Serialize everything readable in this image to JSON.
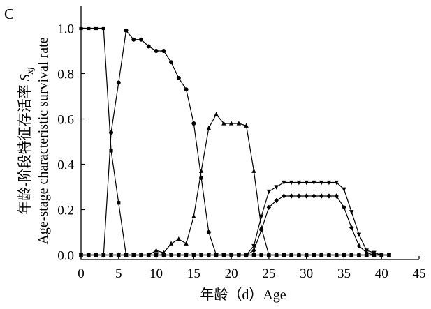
{
  "chart_data": {
    "type": "line",
    "panel_label": "C",
    "xlabel": "年龄（d）Age",
    "ylabel": "年龄-阶段特征存活率 Sxj",
    "ylabel_en": "Age-stage characteristic survival rate",
    "ylabel_symbol_main": "S",
    "ylabel_symbol_sub": "xj",
    "xlim": [
      0,
      45
    ],
    "ylim": [
      -0.02,
      1.1
    ],
    "x_ticks": [
      0,
      5,
      10,
      15,
      20,
      25,
      30,
      35,
      40,
      45
    ],
    "y_ticks": [
      0.0,
      0.2,
      0.4,
      0.6,
      0.8,
      1.0
    ],
    "x_tick_labels": [
      "0",
      "5",
      "10",
      "15",
      "20",
      "25",
      "30",
      "35",
      "40",
      "45"
    ],
    "y_tick_labels": [
      "0.0",
      "0.2",
      "0.4",
      "0.6",
      "0.8",
      "1.0"
    ],
    "grid": false,
    "legend": "none",
    "series": [
      {
        "marker": "square",
        "x": [
          0,
          1,
          2,
          3,
          4,
          5,
          6,
          7,
          8,
          9,
          10,
          11,
          12,
          13,
          14,
          15,
          16,
          17,
          18,
          19,
          20,
          21,
          22,
          23,
          24,
          25,
          26,
          27,
          28,
          29,
          30,
          31,
          32,
          33,
          34,
          35,
          36,
          37,
          38,
          39,
          40,
          41
        ],
        "y": [
          1.0,
          1.0,
          1.0,
          1.0,
          0.46,
          0.23,
          0.0,
          0.0,
          0.0,
          0.0,
          0.0,
          0.0,
          0.0,
          0.0,
          0.0,
          0.0,
          0.0,
          0.0,
          0.0,
          0.0,
          0.0,
          0.0,
          0.0,
          0.0,
          0.0,
          0.0,
          0.0,
          0.0,
          0.0,
          0.0,
          0.0,
          0.0,
          0.0,
          0.0,
          0.0,
          0.0,
          0.0,
          0.0,
          0.0,
          0.0,
          0.0,
          0.0
        ]
      },
      {
        "marker": "circle",
        "x": [
          0,
          1,
          2,
          3,
          4,
          5,
          6,
          7,
          8,
          9,
          10,
          11,
          12,
          13,
          14,
          15,
          16,
          17,
          18,
          19,
          20,
          21,
          22,
          23,
          24,
          25,
          26,
          27,
          28,
          29,
          30,
          31,
          32,
          33,
          34,
          35,
          36,
          37,
          38,
          39,
          40,
          41
        ],
        "y": [
          0.0,
          0.0,
          0.0,
          0.0,
          0.54,
          0.76,
          0.99,
          0.95,
          0.95,
          0.92,
          0.9,
          0.9,
          0.85,
          0.78,
          0.73,
          0.58,
          0.34,
          0.1,
          0.0,
          0.0,
          0.0,
          0.0,
          0.0,
          0.0,
          0.0,
          0.0,
          0.0,
          0.0,
          0.0,
          0.0,
          0.0,
          0.0,
          0.0,
          0.0,
          0.0,
          0.0,
          0.0,
          0.0,
          0.0,
          0.0,
          0.0,
          0.0
        ]
      },
      {
        "marker": "triangle-up",
        "x": [
          0,
          1,
          2,
          3,
          4,
          5,
          6,
          7,
          8,
          9,
          10,
          11,
          12,
          13,
          14,
          15,
          16,
          17,
          18,
          19,
          20,
          21,
          22,
          23,
          24,
          25,
          26,
          27,
          28,
          29,
          30,
          31,
          32,
          33,
          34,
          35,
          36,
          37,
          38,
          39,
          40,
          41
        ],
        "y": [
          0.0,
          0.0,
          0.0,
          0.0,
          0.0,
          0.0,
          0.0,
          0.0,
          0.0,
          0.0,
          0.02,
          0.01,
          0.05,
          0.07,
          0.05,
          0.17,
          0.37,
          0.56,
          0.62,
          0.58,
          0.58,
          0.58,
          0.57,
          0.37,
          0.12,
          0.0,
          0.0,
          0.0,
          0.0,
          0.0,
          0.0,
          0.0,
          0.0,
          0.0,
          0.0,
          0.0,
          0.0,
          0.0,
          0.0,
          0.0,
          0.0,
          0.0
        ]
      },
      {
        "marker": "triangle-down",
        "x": [
          0,
          1,
          2,
          3,
          4,
          5,
          6,
          7,
          8,
          9,
          10,
          11,
          12,
          13,
          14,
          15,
          16,
          17,
          18,
          19,
          20,
          21,
          22,
          23,
          24,
          25,
          26,
          27,
          28,
          29,
          30,
          31,
          32,
          33,
          34,
          35,
          36,
          37,
          38,
          39,
          40,
          41
        ],
        "y": [
          0.0,
          0.0,
          0.0,
          0.0,
          0.0,
          0.0,
          0.0,
          0.0,
          0.0,
          0.0,
          0.0,
          0.0,
          0.0,
          0.0,
          0.0,
          0.0,
          0.0,
          0.0,
          0.0,
          0.0,
          0.0,
          0.0,
          0.0,
          0.04,
          0.17,
          0.28,
          0.3,
          0.32,
          0.32,
          0.32,
          0.32,
          0.32,
          0.32,
          0.32,
          0.32,
          0.29,
          0.19,
          0.09,
          0.02,
          0.01,
          0.0,
          0.0
        ]
      },
      {
        "marker": "diamond",
        "x": [
          0,
          1,
          2,
          3,
          4,
          5,
          6,
          7,
          8,
          9,
          10,
          11,
          12,
          13,
          14,
          15,
          16,
          17,
          18,
          19,
          20,
          21,
          22,
          23,
          24,
          25,
          26,
          27,
          28,
          29,
          30,
          31,
          32,
          33,
          34,
          35,
          36,
          37,
          38,
          39,
          40,
          41
        ],
        "y": [
          0.0,
          0.0,
          0.0,
          0.0,
          0.0,
          0.0,
          0.0,
          0.0,
          0.0,
          0.0,
          0.0,
          0.0,
          0.0,
          0.0,
          0.0,
          0.0,
          0.0,
          0.0,
          0.0,
          0.0,
          0.0,
          0.0,
          0.0,
          0.02,
          0.11,
          0.21,
          0.24,
          0.26,
          0.26,
          0.26,
          0.26,
          0.26,
          0.26,
          0.26,
          0.26,
          0.21,
          0.12,
          0.04,
          0.01,
          0.0,
          0.0,
          0.0
        ]
      }
    ]
  }
}
